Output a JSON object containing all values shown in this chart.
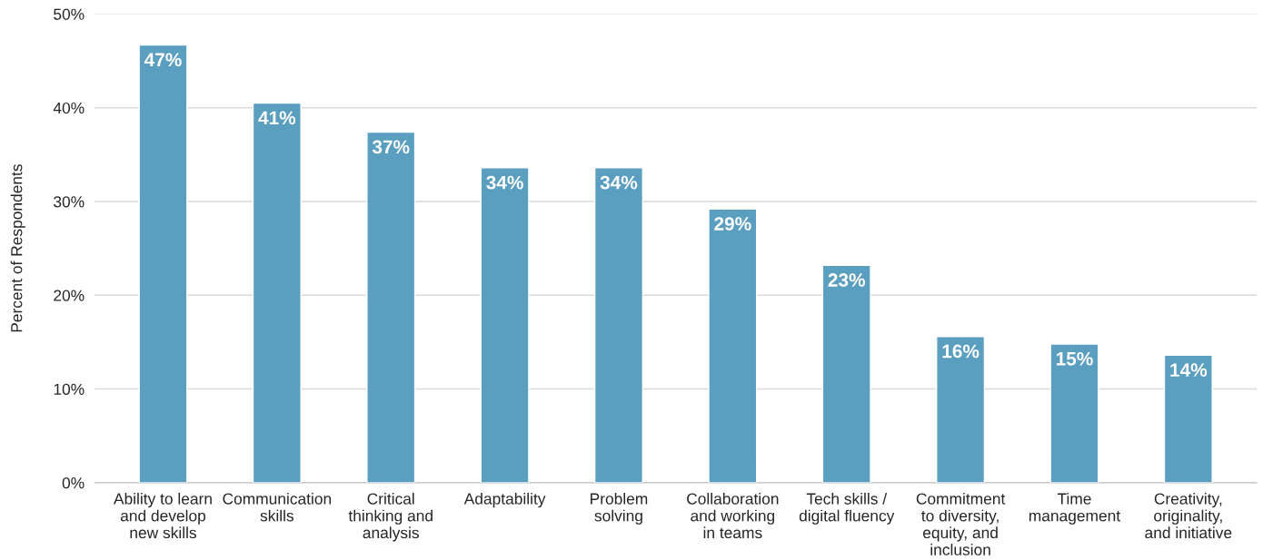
{
  "chart_data": {
    "type": "bar",
    "ylabel": "Percent of Respondents",
    "categories": [
      "Ability to learn and develop new skills",
      "Communication skills",
      "Critical thinking and analysis",
      "Adaptability",
      "Problem solving",
      "Collaboration and working in teams",
      "Tech skills / digital fluency",
      "Commitment to diversity, equity, and inclusion",
      "Time management",
      "Creativity, originality, and initiative"
    ],
    "values": [
      46.7,
      40.5,
      37.4,
      33.6,
      33.6,
      29.2,
      23.2,
      15.6,
      14.8,
      13.6
    ],
    "value_labels": [
      "47%",
      "41%",
      "37%",
      "34%",
      "34%",
      "29%",
      "23%",
      "16%",
      "15%",
      "14%"
    ],
    "color": "#5a9ec0",
    "ylim": [
      0,
      50
    ],
    "yticks": [
      {
        "value": 0,
        "label": "0%"
      },
      {
        "value": 10,
        "label": "10%"
      },
      {
        "value": 20,
        "label": "20%"
      },
      {
        "value": 30,
        "label": "30%"
      },
      {
        "value": 40,
        "label": "40%"
      },
      {
        "value": 50,
        "label": "50%"
      }
    ],
    "grid": "y"
  }
}
